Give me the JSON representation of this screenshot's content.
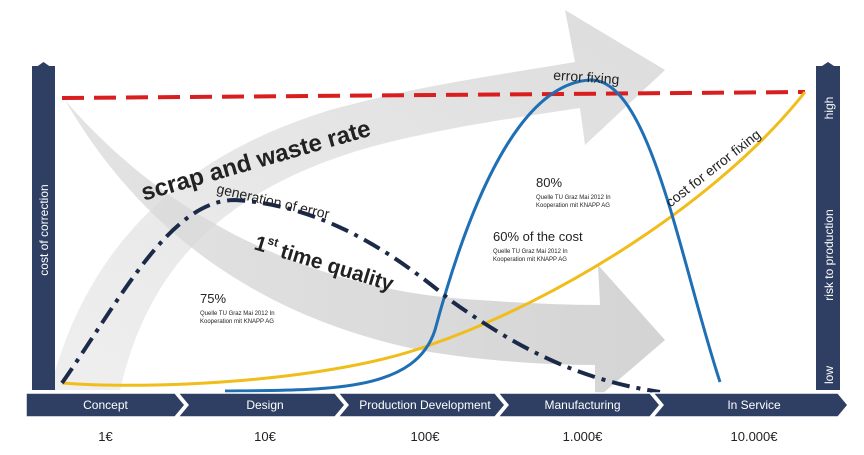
{
  "left_axis": {
    "label": "cost of correction"
  },
  "right_axis": {
    "top": "high",
    "middle": "risk to production",
    "bottom": "low"
  },
  "arrows": {
    "upper": "scrap and waste rate",
    "lower": {
      "number": "1",
      "suffix": "st",
      "rest": "time quality"
    }
  },
  "curves": {
    "generation": "generation of error",
    "fixing": "error fixing",
    "cost": "cost for error fixing"
  },
  "notes": [
    {
      "value": "80%",
      "source": [
        "Quelle TU Graz Mai 2012 In",
        "Kooperation mit KNAPP AG"
      ]
    },
    {
      "value": "60% of the cost",
      "source": [
        "Quelle TU Graz Mai 2012 In",
        "Kooperation mit KNAPP AG"
      ]
    },
    {
      "value": "75%",
      "source": [
        "Quelle TU Graz Mai 2012 In",
        "Kooperation mit KNAPP AG"
      ]
    }
  ],
  "phases": [
    "Concept",
    "Design",
    "Production Development",
    "Manufacturing",
    "In Service"
  ],
  "costs": [
    "1€",
    "10€",
    "100€",
    "1.000€",
    "10.000€"
  ]
}
